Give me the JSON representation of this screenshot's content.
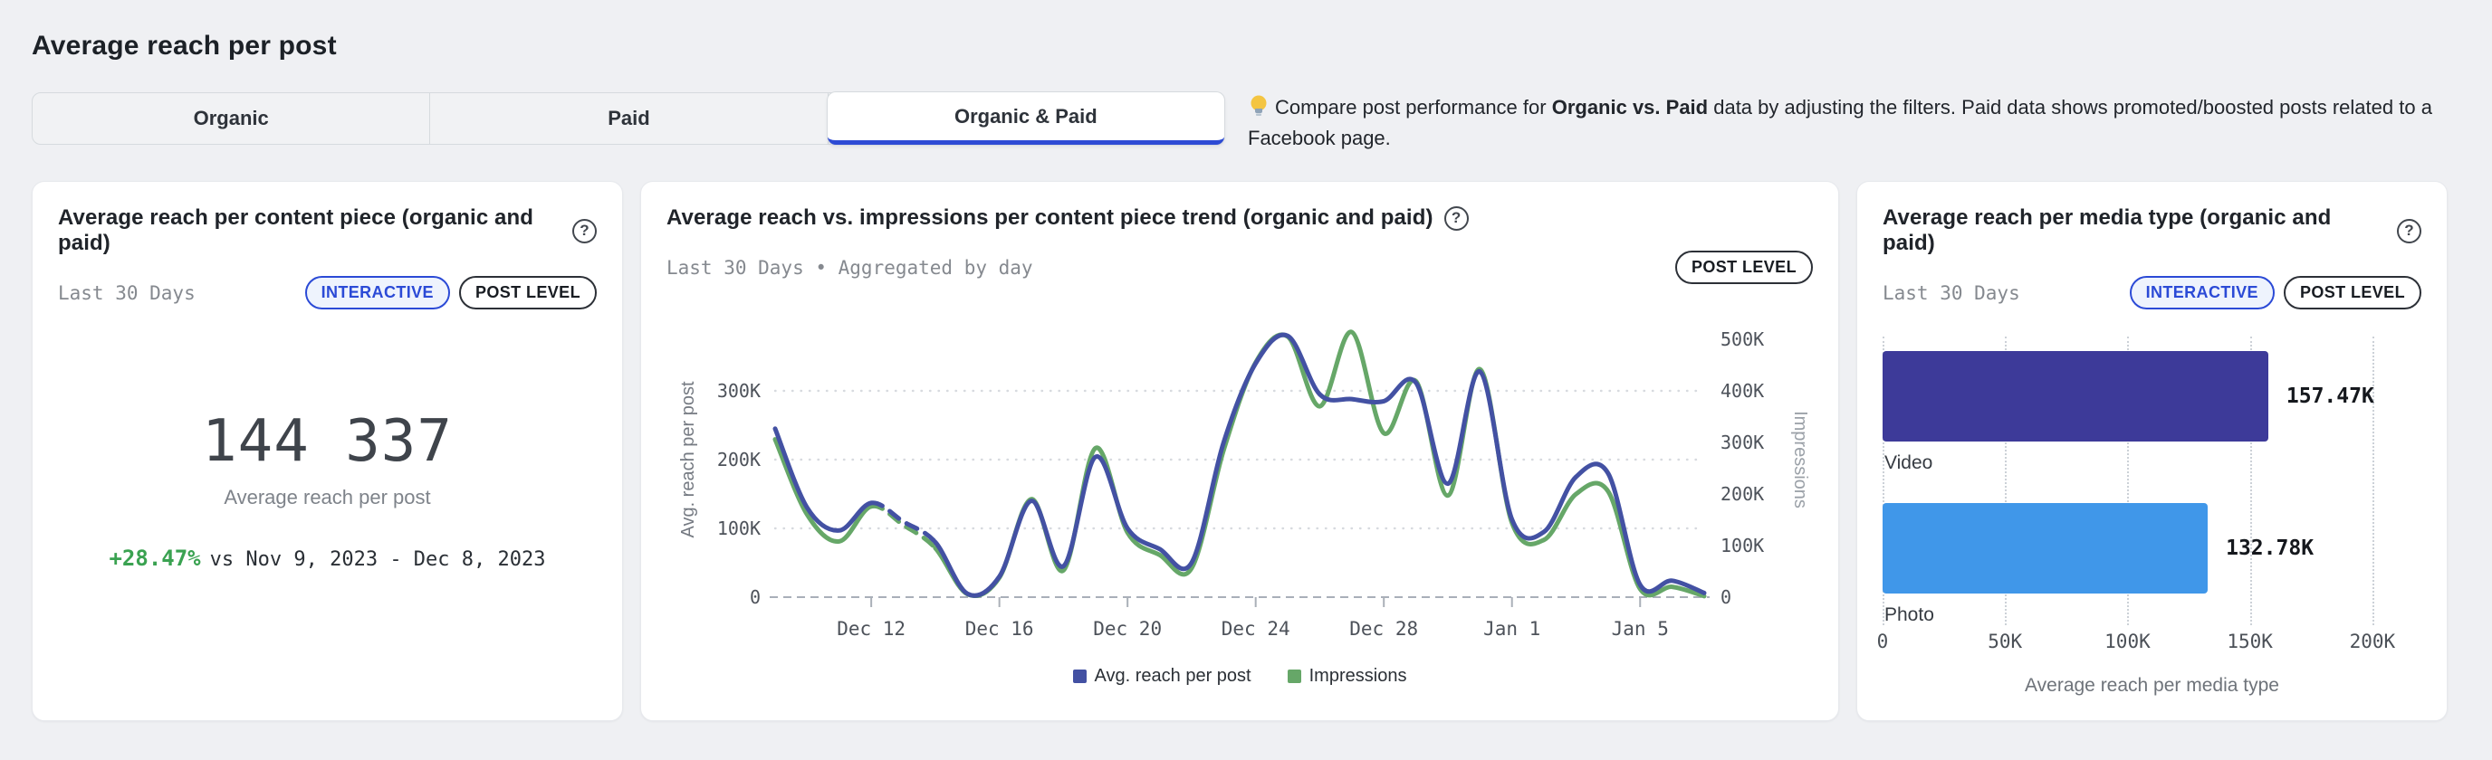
{
  "page": {
    "title": "Average reach per post"
  },
  "tabs": {
    "items": [
      {
        "label": "Organic",
        "selected": false
      },
      {
        "label": "Paid",
        "selected": false
      },
      {
        "label": "Organic & Paid",
        "selected": true
      }
    ]
  },
  "tip": {
    "icon": "lightbulb-icon",
    "prefix": "Compare post performance for ",
    "bold": "Organic vs. Paid",
    "suffix": " data by adjusting the filters. Paid data shows promoted/boosted posts related to a Facebook page."
  },
  "cards": {
    "summary": {
      "title": "Average reach per content piece (organic and paid)",
      "help_icon": "question-circle-icon",
      "period": "Last 30 Days",
      "badges": [
        "INTERACTIVE",
        "POST LEVEL"
      ],
      "value": "144 337",
      "value_label": "Average reach per post",
      "delta": "+28.47%",
      "delta_compare": "vs Nov 9, 2023 - Dec 8, 2023"
    },
    "trend": {
      "title": "Average reach vs. impressions per content piece trend (organic and paid)",
      "help_icon": "question-circle-icon",
      "period": "Last 30 Days • Aggregated by day",
      "badges": [
        "POST LEVEL"
      ]
    },
    "media": {
      "title": "Average reach per media type (organic and paid)",
      "help_icon": "question-circle-icon",
      "period": "Last 30 Days",
      "badges": [
        "INTERACTIVE",
        "POST LEVEL"
      ]
    }
  },
  "colors": {
    "accent_blue": "#2d4bd4",
    "badge_blue": "#2b4ad6",
    "delta_green": "#3aa251",
    "line_blue": "#4351a3",
    "line_green": "#66a768",
    "bar_video": "#3d3a99",
    "bar_photo": "#4097e9"
  },
  "chart_data": [
    {
      "type": "line",
      "title": "Average reach vs. impressions per content piece trend (organic and paid)",
      "unit": "thousands",
      "x": [
        "Dec 9",
        "Dec 10",
        "Dec 11",
        "Dec 12",
        "Dec 13",
        "Dec 14",
        "Dec 15",
        "Dec 16",
        "Dec 17",
        "Dec 18",
        "Dec 19",
        "Dec 20",
        "Dec 21",
        "Dec 22",
        "Dec 23",
        "Dec 24",
        "Dec 25",
        "Dec 26",
        "Dec 27",
        "Dec 28",
        "Dec 29",
        "Dec 30",
        "Dec 31",
        "Jan 1",
        "Jan 2",
        "Jan 3",
        "Jan 4",
        "Jan 5",
        "Jan 6",
        "Jan 7"
      ],
      "x_tick_indices": [
        3,
        7,
        11,
        15,
        19,
        23,
        27
      ],
      "x_tick_labels": [
        "Dec 12",
        "Dec 16",
        "Dec 20",
        "Dec 24",
        "Dec 28",
        "Jan 1",
        "Jan 5"
      ],
      "left_axis": {
        "title": "Avg. reach per post",
        "ticks": [
          0,
          100,
          200,
          300
        ],
        "tick_labels": [
          "0",
          "100K",
          "200K",
          "300K"
        ],
        "max": 400
      },
      "right_axis": {
        "title": "Impressions",
        "ticks": [
          0,
          100,
          200,
          300,
          400,
          500
        ],
        "tick_labels": [
          "0",
          "100K",
          "200K",
          "300K",
          "400K",
          "500K"
        ],
        "max": 533.33
      },
      "grid": "dotted-horizontal",
      "legend_position": "bottom",
      "series": [
        {
          "name": "Avg. reach per post",
          "axis": "left",
          "color": "#4351a3",
          "dashed_segment": [
            3,
            5
          ],
          "values_k": [
            245,
            130,
            97,
            137,
            110,
            80,
            5,
            30,
            140,
            45,
            204,
            100,
            70,
            50,
            225,
            340,
            380,
            295,
            288,
            285,
            312,
            165,
            328,
            113,
            95,
            175,
            180,
            18,
            24,
            6
          ]
        },
        {
          "name": "Impressions",
          "axis": "right",
          "color": "#66a768",
          "dashed_segment": [
            3,
            5
          ],
          "values_k": [
            306,
            160,
            108,
            176,
            140,
            95,
            6,
            38,
            190,
            52,
            289,
            125,
            82,
            56,
            285,
            455,
            505,
            370,
            514,
            318,
            419,
            197,
            442,
            144,
            111,
            200,
            205,
            16,
            20,
            2
          ]
        }
      ]
    },
    {
      "type": "bar",
      "orientation": "horizontal",
      "title": "Average reach per media type (organic and paid)",
      "categories": [
        "Video",
        "Photo"
      ],
      "values_k": [
        157.47,
        132.78
      ],
      "value_labels": [
        "157.47K",
        "132.78K"
      ],
      "bar_colors": [
        "#3d3a99",
        "#4097e9"
      ],
      "x_tick_values": [
        0,
        50,
        100,
        150,
        200
      ],
      "x_tick_labels": [
        "0",
        "50K",
        "100K",
        "150K",
        "200K"
      ],
      "axis_max": 220,
      "xlabel": "Average reach per media type",
      "grid": "dotted-vertical"
    }
  ]
}
